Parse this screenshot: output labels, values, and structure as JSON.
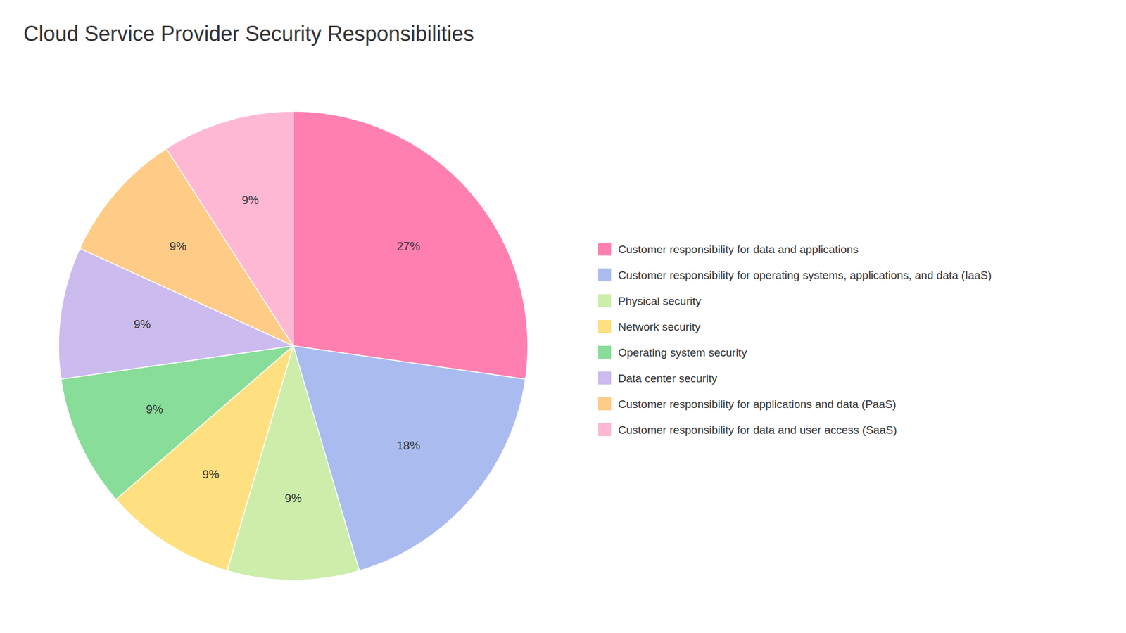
{
  "chart_data": {
    "type": "pie",
    "title": "Cloud Service Provider Security Responsibilities",
    "categories": [
      "Customer responsibility for data and applications",
      "Customer responsibility for operating systems, applications, and data (IaaS)",
      "Physical security",
      "Network security",
      "Operating system security",
      "Data center security",
      "Customer responsibility for applications and data (PaaS)",
      "Customer responsibility for data and user access (SaaS)"
    ],
    "values": [
      27,
      18,
      9,
      9,
      9,
      9,
      9,
      9
    ],
    "value_labels": [
      "27%",
      "18%",
      "9%",
      "9%",
      "9%",
      "9%",
      "9%",
      "9%"
    ],
    "colors": [
      "#FF80B0",
      "#AABCEF",
      "#CCEEAA",
      "#FFE080",
      "#88DD99",
      "#CCBBEE",
      "#FFCC88",
      "#FFB8D4"
    ],
    "data_labels": true,
    "legend": "right"
  }
}
